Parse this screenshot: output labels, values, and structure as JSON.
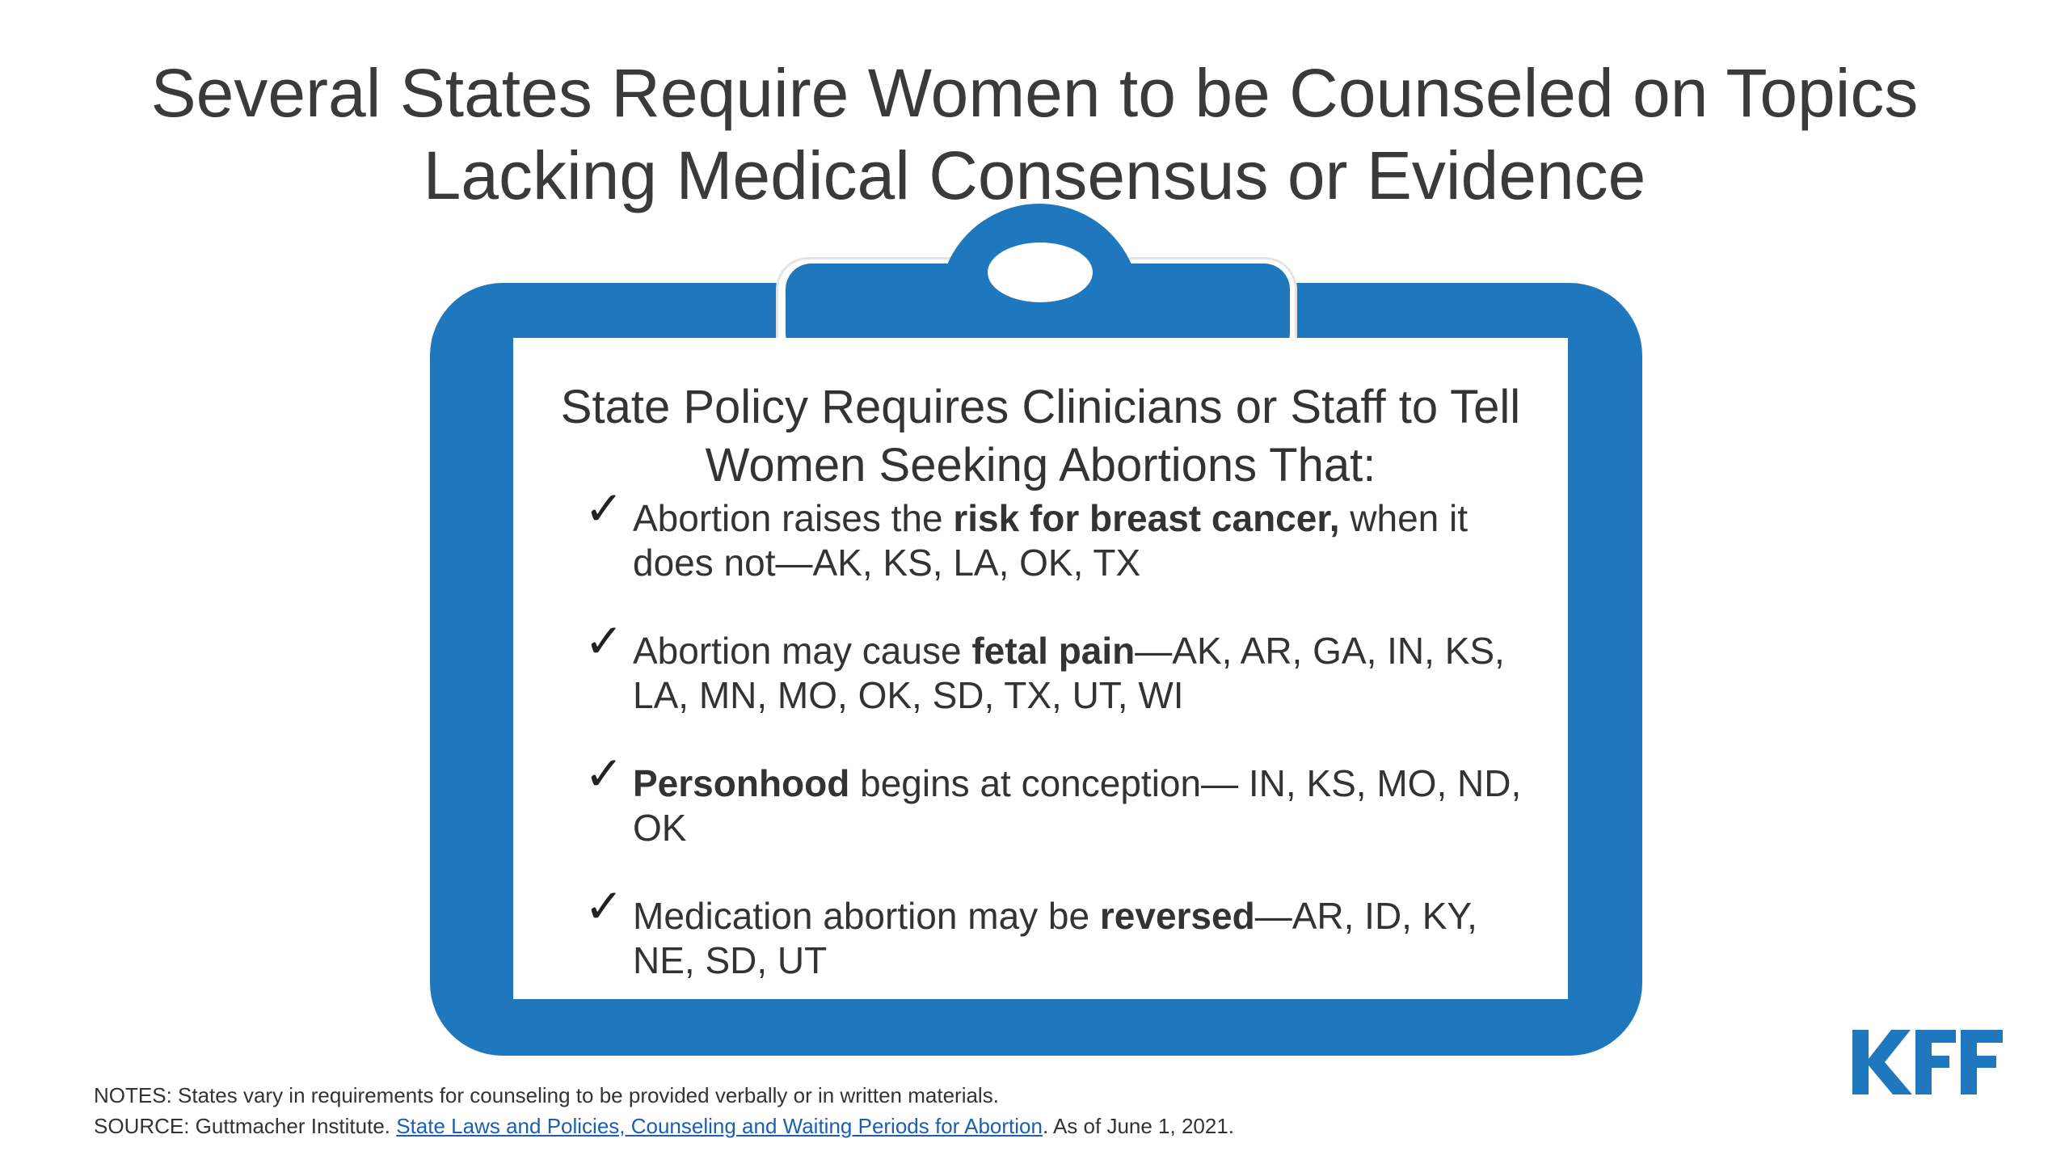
{
  "title": {
    "line1": "Several States Require Women to be Counseled on Topics",
    "line2": "Lacking Medical Consensus or Evidence"
  },
  "panel": {
    "heading_line1": "State Policy Requires Clinicians or Staff to Tell",
    "heading_line2": "Women Seeking Abortions That:",
    "check_icon": "✓",
    "items": [
      {
        "pre": "Abortion raises the ",
        "bold": "risk for breast cancer,",
        "post": " when it does not—AK, KS, LA, OK, TX"
      },
      {
        "pre": "Abortion may cause ",
        "bold": "fetal pain",
        "post": "—AK, AR, GA, IN, KS, LA, MN, MO, OK, SD, TX, UT, WI"
      },
      {
        "pre": "",
        "bold": "Personhood",
        "post": " begins at conception— IN, KS, MO, ND, OK"
      },
      {
        "pre": "Medication abortion may be ",
        "bold": "reversed",
        "post": "—AR, ID, KY, NE, SD, UT"
      }
    ]
  },
  "footer": {
    "notes": "NOTES: States vary in requirements for counseling to be provided verbally or in written materials.",
    "source_prefix": "SOURCE: Guttmacher Institute. ",
    "source_link": "State Laws and Policies, Counseling and Waiting Periods for Abortion",
    "source_suffix": ". As of June 1, 2021."
  },
  "logo": {
    "text": "KFF",
    "color": "#1f77bd"
  },
  "colors": {
    "clipboard": "#1f77bd",
    "text": "#333333",
    "link": "#1a5fb4"
  }
}
